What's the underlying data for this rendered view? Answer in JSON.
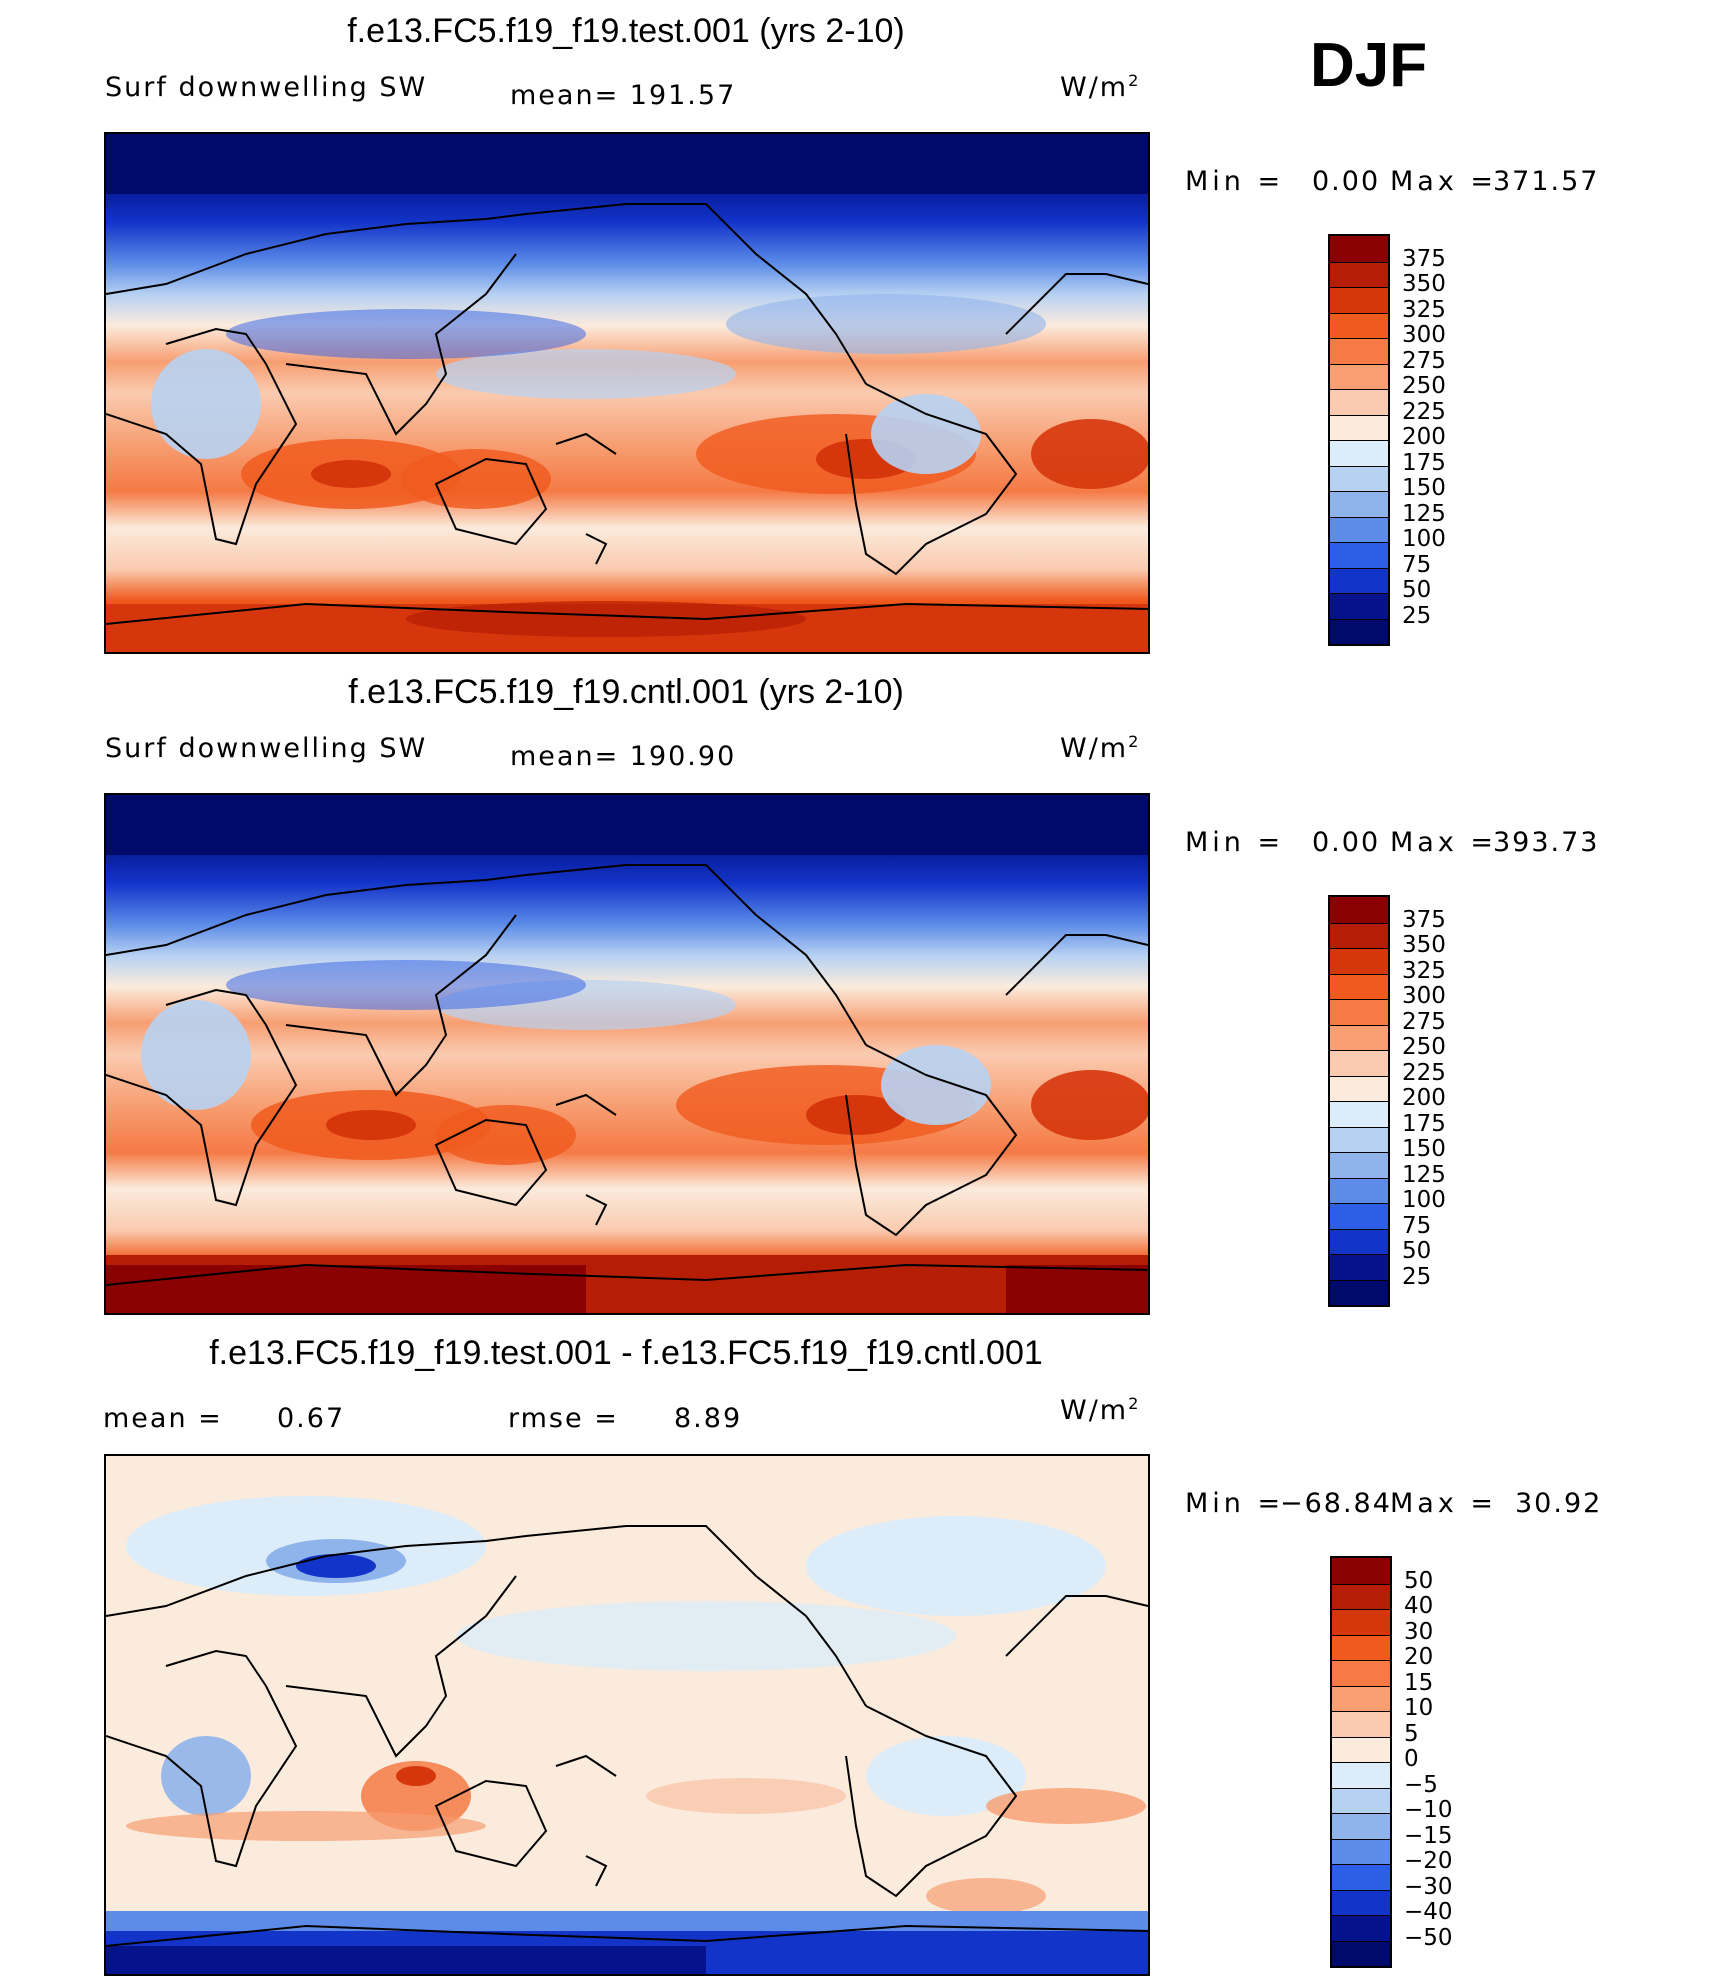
{
  "season": "DJF",
  "units": "W/m",
  "units_exponent": "2",
  "chart_data": [
    {
      "type": "heatmap",
      "title": "f.e13.FC5.f19_f19.test.001 (yrs 2-10)",
      "variable": "Surf downwelling SW",
      "mean_text": "mean= 191.57",
      "min_label": "Min =",
      "min_value": "0.00",
      "max_label": "Max =",
      "max_value": "371.57",
      "levels": [
        "375",
        "350",
        "325",
        "300",
        "275",
        "250",
        "225",
        "200",
        "175",
        "150",
        "125",
        "100",
        "75",
        "50",
        "25"
      ],
      "colors": [
        "#8b0000",
        "#b51d05",
        "#d6360c",
        "#f05a1e",
        "#f57a45",
        "#f79e72",
        "#facbb0",
        "#fbebdc",
        "#dcecf9",
        "#b7d1f2",
        "#8fb4ec",
        "#5c8ce8",
        "#2c5ee8",
        "#1334c9",
        "#04138b",
        "#000a6b"
      ]
    },
    {
      "type": "heatmap",
      "title": "f.e13.FC5.f19_f19.cntl.001 (yrs 2-10)",
      "variable": "Surf downwelling SW",
      "mean_text": "mean= 190.90",
      "min_label": "Min =",
      "min_value": "0.00",
      "max_label": "Max =",
      "max_value": "393.73",
      "levels": [
        "375",
        "350",
        "325",
        "300",
        "275",
        "250",
        "225",
        "200",
        "175",
        "150",
        "125",
        "100",
        "75",
        "50",
        "25"
      ],
      "colors": [
        "#8b0000",
        "#b51d05",
        "#d6360c",
        "#f05a1e",
        "#f57a45",
        "#f79e72",
        "#facbb0",
        "#fbebdc",
        "#dcecf9",
        "#b7d1f2",
        "#8fb4ec",
        "#5c8ce8",
        "#2c5ee8",
        "#1334c9",
        "#04138b",
        "#000a6b"
      ]
    },
    {
      "type": "heatmap",
      "title": "f.e13.FC5.f19_f19.test.001 - f.e13.FC5.f19_f19.cntl.001",
      "mean_label": "mean =",
      "mean_value": "0.67",
      "rmse_label": "rmse =",
      "rmse_value": "8.89",
      "min_label": "Min =",
      "min_value": "−68.84",
      "max_label": "Max =",
      "max_value": "30.92",
      "levels": [
        "50",
        "40",
        "30",
        "20",
        "15",
        "10",
        "5",
        "0",
        "−5",
        "−10",
        "−15",
        "−20",
        "−30",
        "−40",
        "−50"
      ],
      "colors": [
        "#8b0000",
        "#b51d05",
        "#d6360c",
        "#f05a1e",
        "#f57a45",
        "#f79e72",
        "#facbb0",
        "#fbebdc",
        "#dcecf9",
        "#b7d1f2",
        "#8fb4ec",
        "#5c8ce8",
        "#2c5ee8",
        "#1334c9",
        "#04138b",
        "#000a6b"
      ]
    }
  ]
}
